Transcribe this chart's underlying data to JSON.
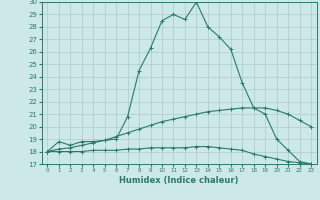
{
  "xlabel": "Humidex (Indice chaleur)",
  "ylabel": "",
  "xlim": [
    -0.5,
    23.5
  ],
  "ylim": [
    17,
    30
  ],
  "yticks": [
    17,
    18,
    19,
    20,
    21,
    22,
    23,
    24,
    25,
    26,
    27,
    28,
    29,
    30
  ],
  "xticks": [
    0,
    1,
    2,
    3,
    4,
    5,
    6,
    7,
    8,
    9,
    10,
    11,
    12,
    13,
    14,
    15,
    16,
    17,
    18,
    19,
    20,
    21,
    22,
    23
  ],
  "bg_color": "#cce8e8",
  "line_color": "#2a7a6a",
  "grid_color": "#aacccc",
  "lines": [
    {
      "x": [
        0,
        1,
        2,
        3,
        4,
        5,
        6,
        7,
        8,
        9,
        10,
        11,
        12,
        13,
        14,
        15,
        16,
        17,
        18,
        19,
        20,
        21,
        22,
        23
      ],
      "y": [
        18.0,
        18.8,
        18.5,
        18.8,
        18.8,
        18.9,
        19.0,
        20.8,
        24.5,
        26.3,
        28.5,
        29.0,
        28.6,
        30.0,
        28.0,
        27.2,
        26.2,
        23.5,
        21.5,
        21.0,
        19.0,
        18.1,
        17.2,
        17.0
      ]
    },
    {
      "x": [
        0,
        1,
        2,
        3,
        4,
        5,
        6,
        7,
        8,
        9,
        10,
        11,
        12,
        13,
        14,
        15,
        16,
        17,
        18,
        19,
        20,
        21,
        22,
        23
      ],
      "y": [
        18.0,
        18.2,
        18.3,
        18.5,
        18.7,
        18.9,
        19.2,
        19.5,
        19.8,
        20.1,
        20.4,
        20.6,
        20.8,
        21.0,
        21.2,
        21.3,
        21.4,
        21.5,
        21.5,
        21.5,
        21.3,
        21.0,
        20.5,
        20.0
      ]
    },
    {
      "x": [
        0,
        1,
        2,
        3,
        4,
        5,
        6,
        7,
        8,
        9,
        10,
        11,
        12,
        13,
        14,
        15,
        16,
        17,
        18,
        19,
        20,
        21,
        22,
        23
      ],
      "y": [
        18.0,
        18.0,
        18.0,
        18.0,
        18.1,
        18.1,
        18.1,
        18.2,
        18.2,
        18.3,
        18.3,
        18.3,
        18.3,
        18.4,
        18.4,
        18.3,
        18.2,
        18.1,
        17.8,
        17.6,
        17.4,
        17.2,
        17.1,
        17.0
      ]
    }
  ],
  "marker": "+",
  "markersize": 3,
  "linewidth": 0.8
}
